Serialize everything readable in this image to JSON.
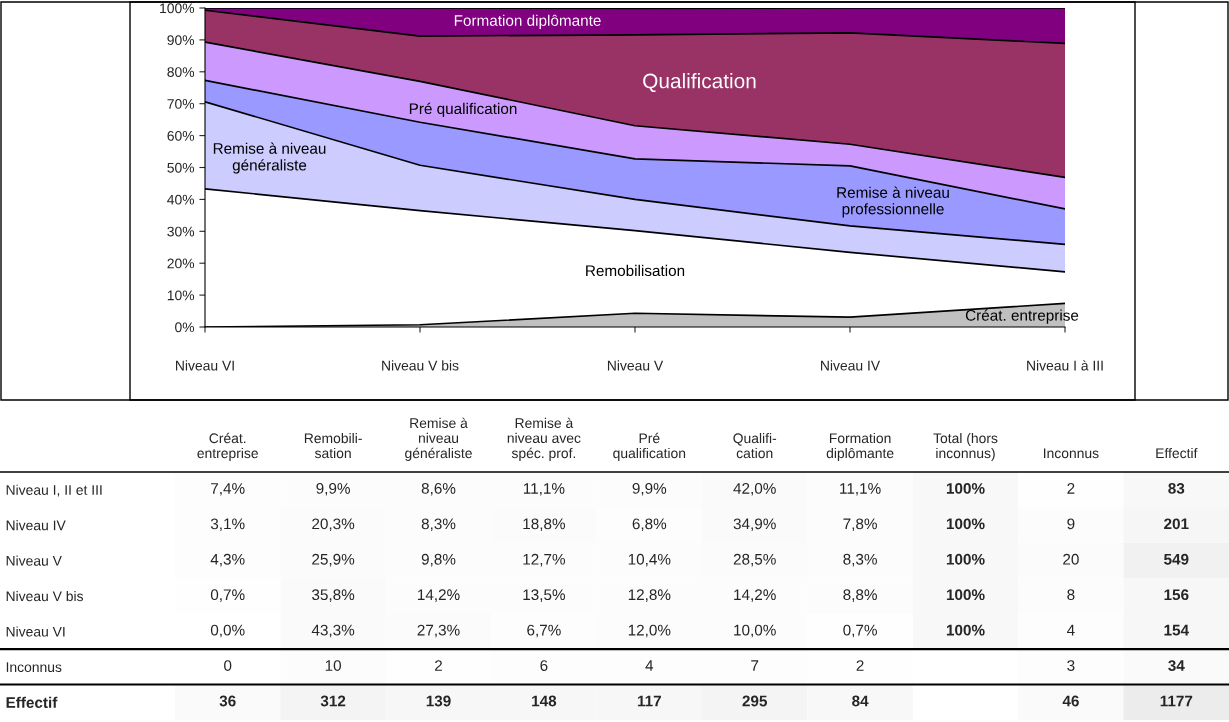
{
  "chart_data": [
    {
      "type": "area",
      "stacked": true,
      "categories": [
        "Niveau VI",
        "Niveau V bis",
        "Niveau V",
        "Niveau IV",
        "Niveau I à III"
      ],
      "series": [
        {
          "name": "Créat. entreprise",
          "color": "#c0c0c0",
          "values": [
            0.0,
            0.7,
            4.3,
            3.1,
            7.4
          ]
        },
        {
          "name": "Remobilisation",
          "color": "#ffffff",
          "values": [
            43.3,
            35.8,
            25.9,
            20.3,
            9.9
          ]
        },
        {
          "name": "Remise à niveau\ngénéraliste",
          "color": "#ccccff",
          "values": [
            27.3,
            14.2,
            9.8,
            8.3,
            8.6
          ]
        },
        {
          "name": "Remise à niveau\nprofessionnelle",
          "color": "#9999ff",
          "values": [
            6.7,
            13.5,
            12.7,
            18.8,
            11.1
          ]
        },
        {
          "name": "Pré qualification",
          "color": "#cc99ff",
          "values": [
            12.0,
            12.8,
            10.4,
            6.8,
            9.9
          ]
        },
        {
          "name": "Qualification",
          "color": "#993366",
          "values": [
            10.0,
            14.2,
            28.5,
            34.9,
            42.0
          ]
        },
        {
          "name": "Formation diplômante",
          "color": "#800080",
          "values": [
            0.7,
            8.8,
            8.3,
            7.8,
            11.1
          ]
        }
      ],
      "ylim": [
        0,
        100
      ],
      "yticks": [
        {
          "value": 0,
          "label": "0%"
        },
        {
          "value": 10,
          "label": "10%"
        },
        {
          "value": 20,
          "label": "20%"
        },
        {
          "value": 30,
          "label": "30%"
        },
        {
          "value": 40,
          "label": "40%"
        },
        {
          "value": 50,
          "label": "50%"
        },
        {
          "value": 60,
          "label": "60%"
        },
        {
          "value": 70,
          "label": "70%"
        },
        {
          "value": 80,
          "label": "80%"
        },
        {
          "value": 90,
          "label": "90%"
        },
        {
          "value": 100,
          "label": "100%"
        }
      ],
      "legend": false
    },
    {
      "type": "heatmap",
      "categories": [
        "Créat.\nentreprise",
        "Remobili-\nsation",
        "Remise à\nniveau\ngénéraliste",
        "Remise à\nniveau avec\nspéc. prof.",
        "Pré\nqualification",
        "Qualifi-\ncation",
        "Formation\ndiplômante",
        "Total (hors\ninconnus)",
        "Inconnus",
        "Effectif"
      ],
      "y_categories": [
        "Niveau I, II et III",
        "Niveau IV",
        "Niveau V",
        "Niveau V bis",
        "Niveau VI",
        "Inconnus",
        "Effectif"
      ],
      "cells": [
        [
          7.4,
          9.9,
          8.6,
          11.1,
          9.9,
          42.0,
          11.1,
          100,
          2,
          83
        ],
        [
          3.1,
          20.3,
          8.3,
          18.8,
          6.8,
          34.9,
          7.8,
          100,
          9,
          201
        ],
        [
          4.3,
          25.9,
          9.8,
          12.7,
          10.4,
          28.5,
          8.3,
          100,
          20,
          549
        ],
        [
          0.7,
          35.8,
          14.2,
          13.5,
          12.8,
          14.2,
          8.8,
          100,
          8,
          156
        ],
        [
          0.0,
          43.3,
          27.3,
          6.7,
          12.0,
          10.0,
          0.7,
          100,
          4,
          154
        ],
        [
          0,
          10,
          2,
          6,
          4,
          7,
          2,
          null,
          3,
          34
        ],
        [
          36,
          312,
          139,
          148,
          117,
          295,
          84,
          null,
          46,
          1177
        ]
      ],
      "cell_labels": [
        [
          "7,4%",
          "9,9%",
          "8,6%",
          "11,1%",
          "9,9%",
          "42,0%",
          "11,1%",
          "100%",
          "2",
          "83"
        ],
        [
          "3,1%",
          "20,3%",
          "8,3%",
          "18,8%",
          "6,8%",
          "34,9%",
          "7,8%",
          "100%",
          "9",
          "201"
        ],
        [
          "4,3%",
          "25,9%",
          "9,8%",
          "12,7%",
          "10,4%",
          "28,5%",
          "8,3%",
          "100%",
          "20",
          "549"
        ],
        [
          "0,7%",
          "35,8%",
          "14,2%",
          "13,5%",
          "12,8%",
          "14,2%",
          "8,8%",
          "100%",
          "8",
          "156"
        ],
        [
          "0,0%",
          "43,3%",
          "27,3%",
          "6,7%",
          "12,0%",
          "10,0%",
          "0,7%",
          "100%",
          "4",
          "154"
        ],
        [
          "0",
          "10",
          "2",
          "6",
          "4",
          "7",
          "2",
          null,
          "3",
          "34"
        ],
        [
          "36",
          "312",
          "139",
          "148",
          "117",
          "295",
          "84",
          null,
          "46",
          "1177"
        ]
      ]
    }
  ]
}
